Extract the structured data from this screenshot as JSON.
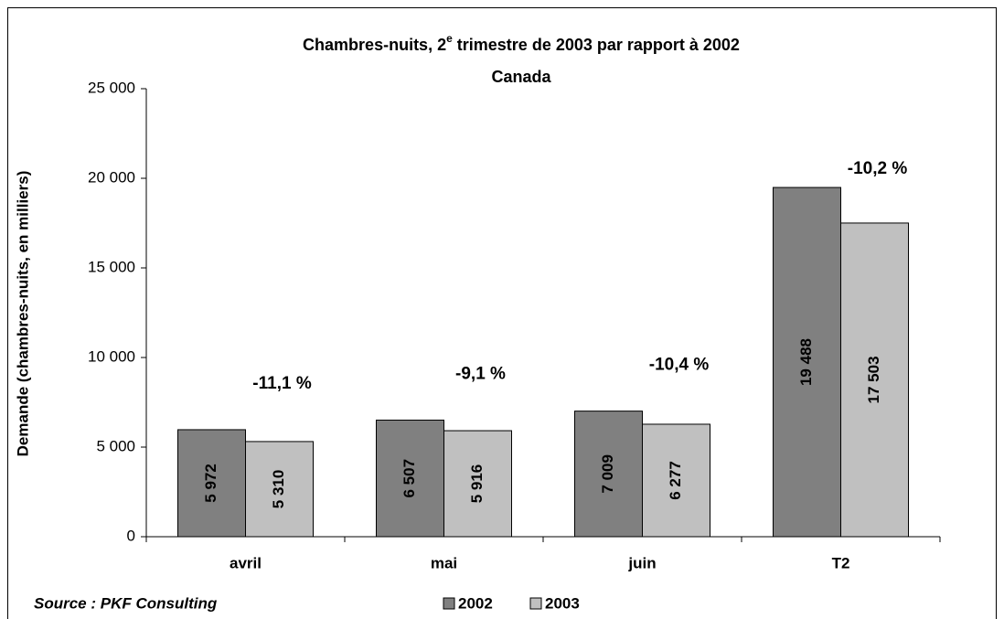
{
  "chart_data": {
    "type": "bar",
    "title_parts": [
      "Chambres-nuits, 2",
      "e",
      " trimestre de 2003 par rapport à 2002"
    ],
    "subtitle": "Canada",
    "y_label": "Demande (chambres-nuits, en milliers)",
    "categories": [
      "avril",
      "mai",
      "juin",
      "T2"
    ],
    "series": [
      {
        "name": "2002",
        "color": "#808080",
        "values": [
          5972,
          6507,
          7009,
          19488
        ],
        "value_labels": [
          "5 972",
          "6 507",
          "7 009",
          "19 488"
        ]
      },
      {
        "name": "2003",
        "color": "#c0c0c0",
        "values": [
          5310,
          5916,
          6277,
          17503
        ],
        "value_labels": [
          "5 310",
          "5 916",
          "6 277",
          "17 503"
        ]
      }
    ],
    "annotations": [
      "-11,1 %",
      "-9,1 %",
      "-10,4 %",
      "-10,2 %"
    ],
    "ylim": [
      0,
      25000
    ],
    "yticks": [
      0,
      {
        "value": 5000,
        "label": "5 000"
      },
      {
        "value": 10000,
        "label": "10 000"
      },
      {
        "value": 15000,
        "label": "15 000"
      },
      {
        "value": 20000,
        "label": "20 000"
      },
      {
        "value": 25000,
        "label": "25 000"
      }
    ],
    "source": "Source : PKF Consulting"
  }
}
